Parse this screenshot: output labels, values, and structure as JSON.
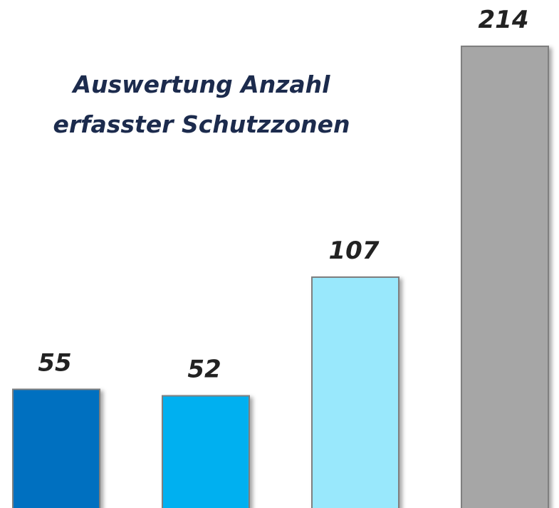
{
  "chart_data": {
    "type": "bar",
    "title": [
      "Auswertung Anzahl",
      "erfasster Schutzzonen"
    ],
    "categories": [
      null,
      null,
      null,
      null
    ],
    "values": [
      55,
      52,
      107,
      214
    ],
    "colors": [
      "#0070c0",
      "#00b0f0",
      "#99e8fc",
      "#a6a6a6"
    ]
  }
}
